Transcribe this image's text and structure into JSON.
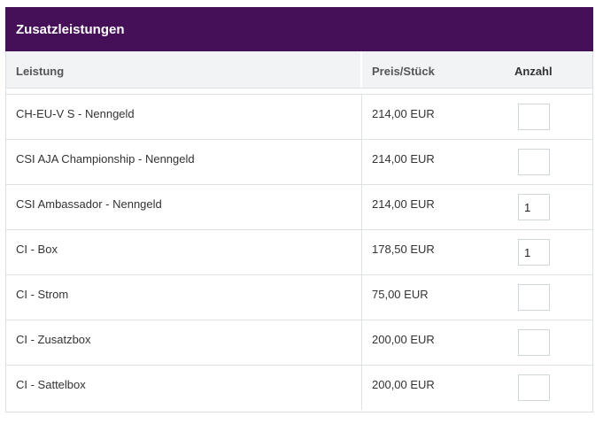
{
  "header": {
    "title": "Zusatzleistungen"
  },
  "columns": {
    "leistung": "Leistung",
    "preis": "Preis/Stück",
    "anzahl": "Anzahl"
  },
  "rows": [
    {
      "name": "CH-EU-V S - Nenngeld",
      "price": "214,00 EUR",
      "quantity": ""
    },
    {
      "name": "CSI AJA Championship - Nenngeld",
      "price": "214,00 EUR",
      "quantity": ""
    },
    {
      "name": "CSI Ambassador - Nenngeld",
      "price": "214,00 EUR",
      "quantity": "1"
    },
    {
      "name": "CI - Box",
      "price": "178,50 EUR",
      "quantity": "1"
    },
    {
      "name": "CI - Strom",
      "price": "75,00 EUR",
      "quantity": ""
    },
    {
      "name": "CI - Zusatzbox",
      "price": "200,00 EUR",
      "quantity": ""
    },
    {
      "name": "CI - Sattelbox",
      "price": "200,00 EUR",
      "quantity": ""
    }
  ],
  "colors": {
    "header_bg": "#461058",
    "column_header_bg": "#f1f3f5",
    "border": "#dde2e6"
  }
}
